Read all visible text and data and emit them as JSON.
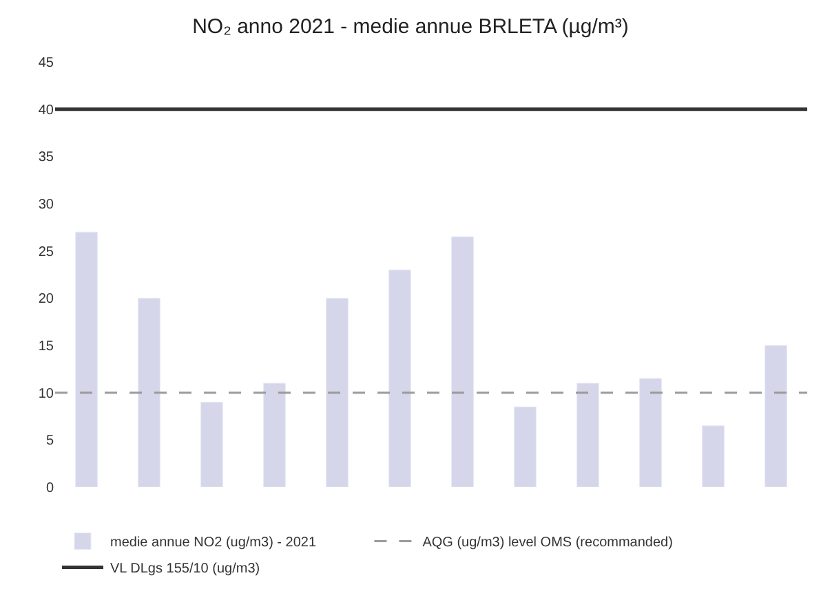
{
  "chart_data": {
    "type": "bar",
    "title": "NO₂ anno 2021 - medie annue BRLETA (µg/m³)",
    "categories": [
      null,
      null,
      null,
      null,
      null,
      null,
      null,
      null,
      null,
      null,
      null,
      null
    ],
    "series": [
      {
        "name": "medie annue NO2 (ug/m3) - 2021",
        "color": "#d6d6ea",
        "values": [
          27,
          20,
          9,
          11,
          20,
          23,
          26.5,
          8.5,
          11,
          11.5,
          6.5,
          15
        ]
      }
    ],
    "ref_lines": [
      {
        "axis": "y",
        "value": 10,
        "label": "AQG (ug/m3) level OMS (recommanded)",
        "color": "#9a9a9a",
        "line_style": "dashed"
      },
      {
        "axis": "y",
        "value": 40,
        "label": "VL DLgs 155/10 (ug/m3)",
        "color": "#333333",
        "line_style": "solid"
      }
    ],
    "ylim": [
      0,
      45
    ],
    "yticks": [
      0,
      5,
      10,
      15,
      20,
      25,
      30,
      35,
      40,
      45
    ],
    "legend": "bottom"
  }
}
